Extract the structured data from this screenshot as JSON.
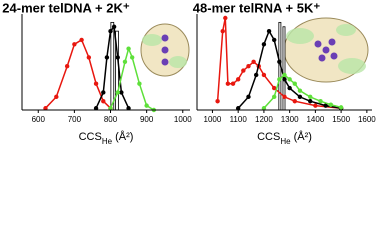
{
  "chart_data": [
    {
      "type": "line",
      "title": "24-mer telDNA + 2K⁺",
      "xlabel": [
        "CCS",
        "He",
        "(Å²)"
      ],
      "xlim": [
        555,
        1020
      ],
      "xticks": [
        600,
        700,
        800,
        900,
        1000
      ],
      "ylim": [
        0,
        1.05
      ],
      "series": [
        {
          "color": "#e8170f",
          "x": [
            620,
            650,
            680,
            700,
            720,
            740,
            760,
            780,
            800
          ],
          "values": [
            0.02,
            0.15,
            0.5,
            0.75,
            0.8,
            0.6,
            0.3,
            0.1,
            0.02
          ]
        },
        {
          "color": "#000000",
          "x": [
            760,
            780,
            790,
            800,
            810,
            820,
            830,
            850
          ],
          "values": [
            0.02,
            0.2,
            0.6,
            0.9,
            0.95,
            0.6,
            0.2,
            0.02
          ]
        },
        {
          "color": "#5ee03a",
          "x": [
            800,
            820,
            840,
            850,
            860,
            880,
            900,
            920
          ],
          "values": [
            0.02,
            0.2,
            0.55,
            0.7,
            0.6,
            0.3,
            0.05,
            0.0
          ]
        }
      ],
      "bars": {
        "x": [
          805,
          818
        ],
        "values": [
          1.0,
          0.9
        ]
      }
    },
    {
      "type": "line",
      "title": "48-mer telRNA + 5K⁺",
      "xlabel": [
        "CCS",
        "He",
        "(Å²)"
      ],
      "xlim": [
        940,
        1620
      ],
      "xticks": [
        1000,
        1100,
        1200,
        1300,
        1400,
        1500,
        1600
      ],
      "ylim": [
        0,
        1.05
      ],
      "series": [
        {
          "color": "#e8170f",
          "x": [
            1020,
            1040,
            1050,
            1060,
            1080,
            1100,
            1120,
            1140,
            1160,
            1180,
            1200,
            1240,
            1280,
            1320,
            1400,
            1500
          ],
          "values": [
            0.1,
            0.9,
            1.05,
            0.3,
            0.3,
            0.35,
            0.45,
            0.5,
            0.55,
            0.5,
            0.4,
            0.25,
            0.15,
            0.1,
            0.05,
            0.02
          ]
        },
        {
          "color": "#000000",
          "x": [
            1100,
            1140,
            1170,
            1200,
            1220,
            1240,
            1260,
            1280,
            1300,
            1340,
            1380,
            1440,
            1500
          ],
          "values": [
            0.02,
            0.15,
            0.4,
            0.75,
            0.9,
            0.8,
            0.55,
            0.35,
            0.25,
            0.15,
            0.1,
            0.05,
            0.02
          ]
        },
        {
          "color": "#5ee03a",
          "x": [
            1200,
            1240,
            1260,
            1280,
            1300,
            1320,
            1340,
            1380,
            1420,
            1460,
            1500
          ],
          "values": [
            0.02,
            0.15,
            0.35,
            0.4,
            0.35,
            0.3,
            0.22,
            0.15,
            0.1,
            0.06,
            0.03
          ]
        }
      ],
      "bars": {
        "x": [
          1262,
          1278
        ],
        "values": [
          1.0,
          0.95
        ]
      }
    }
  ]
}
